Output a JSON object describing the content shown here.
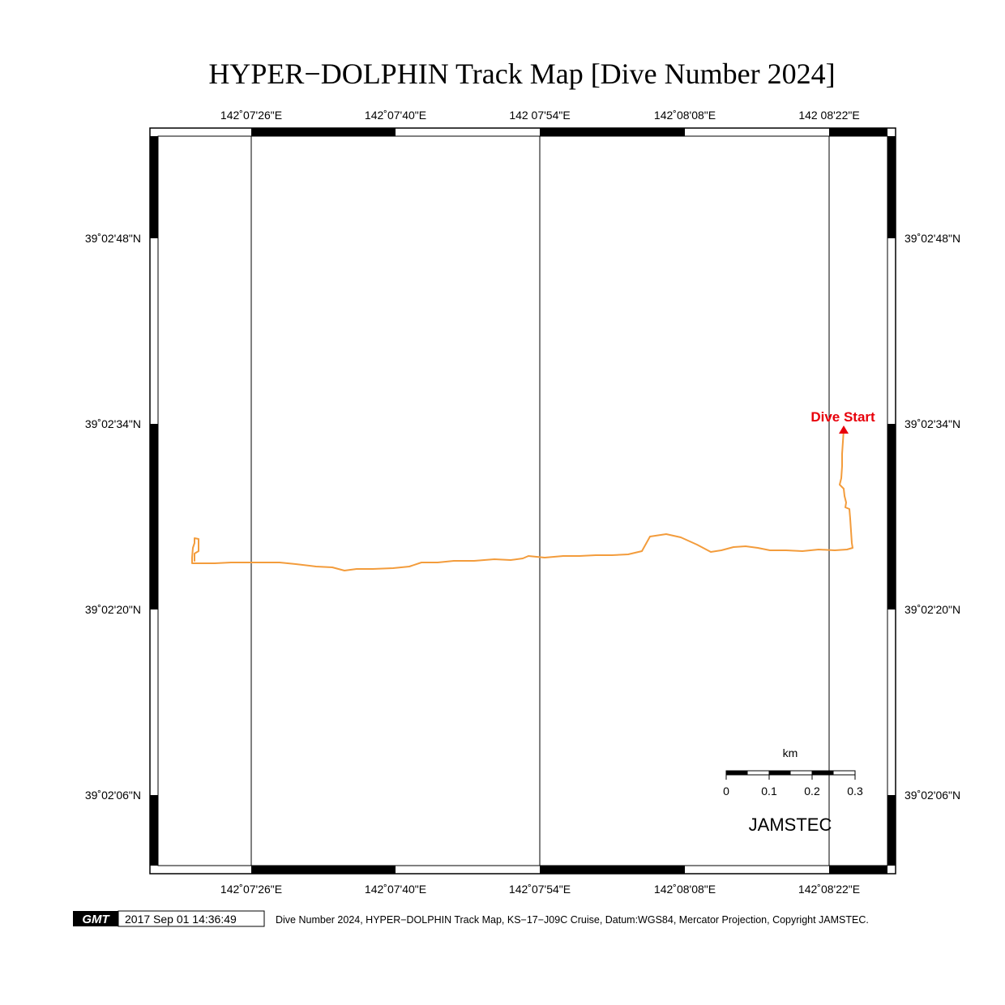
{
  "title": "HYPER−DOLPHIN Track Map [Dive Number 2024]",
  "map": {
    "lon_labels": [
      "142˚07'26\"E",
      "142˚07'40\"E",
      "142 07'54\"E",
      "142˚08'08\"E",
      "142 08'22\"E"
    ],
    "lon_labels_bottom": [
      "142˚07'26\"E",
      "142˚07'40\"E",
      "142˚07'54\"E",
      "142˚08'08\"E",
      "142˚08'22\"E"
    ],
    "lat_labels": [
      "39˚02'48\"N",
      "39˚02'34\"N",
      "39˚02'20\"N",
      "39˚02'06\"N"
    ],
    "dive_start_label": "Dive Start",
    "colors": {
      "track": "#f39c3c",
      "dive_start": "#e8000b",
      "frame": "#000000"
    }
  },
  "scale_bar": {
    "unit": "km",
    "ticks": [
      "0",
      "0.1",
      "0.2",
      "0.3"
    ]
  },
  "watermark": "JAMSTEC",
  "footer": {
    "logo_text": "GMT",
    "timestamp": "2017 Sep 01 14:36:49",
    "caption": "Dive Number 2024, HYPER−DOLPHIN Track Map, KS−17−J09C Cruise, Datum:WGS84, Mercator Projection, Copyright JAMSTEC."
  }
}
